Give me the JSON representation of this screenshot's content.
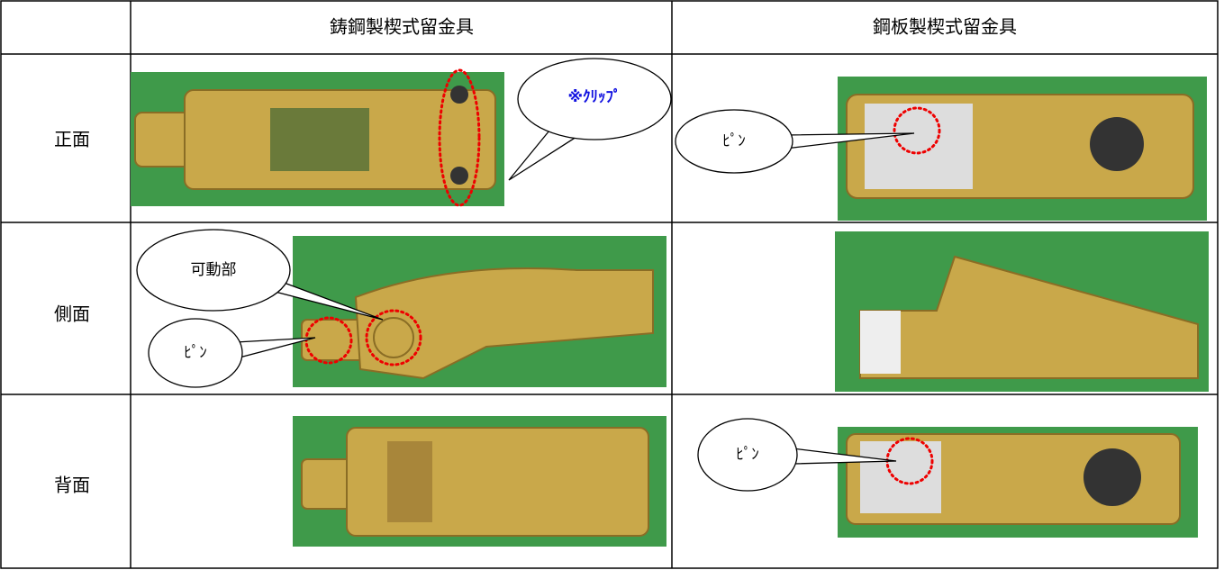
{
  "table": {
    "columns": [
      "鋳鋼製楔式留金具",
      "鋼板製楔式留金具"
    ],
    "rows": [
      {
        "label": "正面",
        "cast_steel_callouts": [
          "※ｸﾘｯﾌﾟ"
        ],
        "steel_plate_callouts": [
          "ﾋﾟﾝ"
        ]
      },
      {
        "label": "側面",
        "cast_steel_callouts": [
          "可動部",
          "ﾋﾟﾝ"
        ]
      },
      {
        "label": "背面",
        "steel_plate_callouts": [
          "ﾋﾟﾝ"
        ]
      }
    ]
  }
}
